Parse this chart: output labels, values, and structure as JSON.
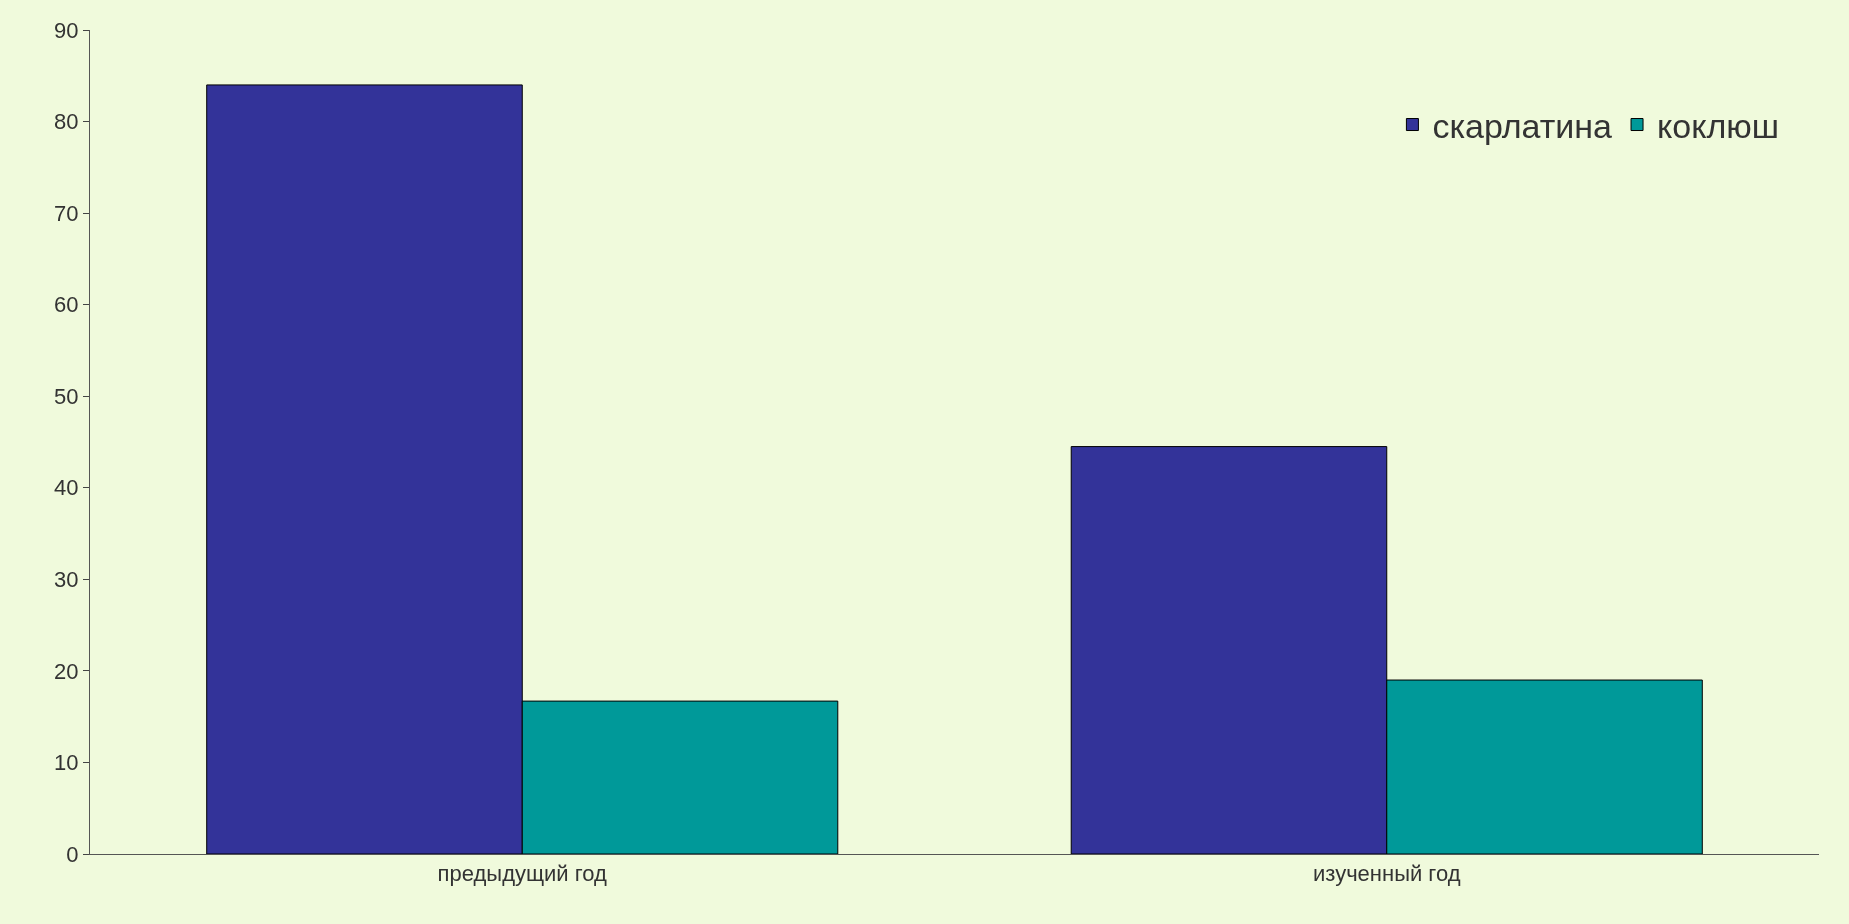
{
  "chart_data": {
    "type": "bar",
    "categories": [
      "предыдущий год",
      "изученный год"
    ],
    "series": [
      {
        "name": "скарлатина",
        "color": "#333399",
        "values": [
          84,
          44.5
        ]
      },
      {
        "name": "коклюш",
        "color": "#009999",
        "values": [
          16.7,
          19
        ]
      }
    ],
    "ylim": [
      0,
      90
    ],
    "yticks": [
      0,
      10,
      20,
      30,
      40,
      50,
      60,
      70,
      80,
      90
    ],
    "grid": false,
    "legend": "top right"
  }
}
